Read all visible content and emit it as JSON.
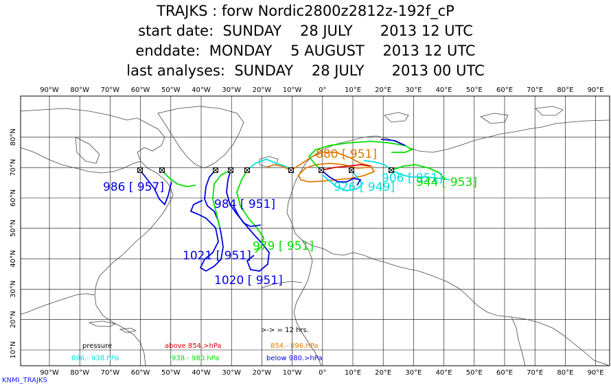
{
  "title": {
    "line1": "TRAJKS : forw Nordic2800z2812z-192f_cP",
    "line2": "start date:  SUNDAY    28 JULY      2013 12 UTC",
    "line3": "enddate:  MONDAY    5 AUGUST    2013 12 UTC",
    "line4": "last analyses:  SUNDAY    28 JULY      2013 00 UTC"
  },
  "axes": {
    "lon_labels": [
      "90°W",
      "80°W",
      "70°W",
      "60°W",
      "50°W",
      "40°W",
      "30°W",
      "20°W",
      "10°W",
      "0°",
      "10°E",
      "20°E",
      "30°E",
      "40°E",
      "50°E",
      "60°E",
      "70°E",
      "80°E",
      "90°E"
    ],
    "lat_labels": [
      "10°N",
      "20°N",
      "30°N",
      "40°N",
      "50°N",
      "60°N",
      "70°N",
      "80°N"
    ]
  },
  "colors": {
    "above_854": "#e00000",
    "range_854_896": "#e07800",
    "range_896_938": "#00e0e0",
    "range_938_980": "#00e000",
    "below_980": "#0000e0"
  },
  "trajectory_labels": [
    {
      "text": "986 [ 957]",
      "color": "#0000e0"
    },
    {
      "text": "984 [ 951]",
      "color": "#0000e0"
    },
    {
      "text": "979 [ 951]",
      "color": "#00e000"
    },
    {
      "text": "1021 [ 951]",
      "color": "#0000e0"
    },
    {
      "text": "1020 [ 951]",
      "color": "#0000e0"
    },
    {
      "text": "880 [ 951]",
      "color": "#e07800"
    },
    {
      "text": "926 [ 949]",
      "color": "#00e0e0"
    },
    {
      "text": "906 [ 951]",
      "color": "#00e0e0"
    },
    {
      "text": "944 [ 953]",
      "color": "#00e000"
    }
  ],
  "legend": {
    "interval_note": ">-> = 12 hrs.",
    "pressure_label": "pressure",
    "above": "above  854.>hPa",
    "r854": "854.-    896.hPa",
    "r896": "896.-    938.hPa",
    "r938": "938.-    980.hPa",
    "below": "below   980.>hPa"
  },
  "footer": "KNMI_TRAJKS"
}
